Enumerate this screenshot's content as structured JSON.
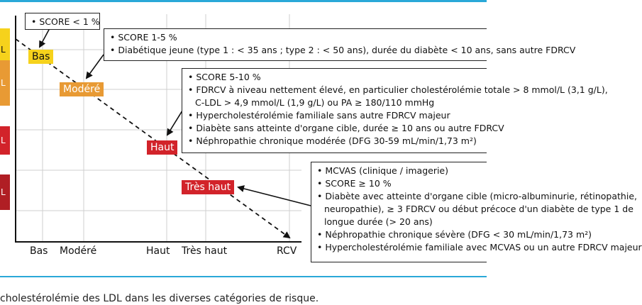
{
  "colors": {
    "accent_line": "#2aa8d8",
    "cat_bas": "#f6d21c",
    "cat_modere": "#e89a34",
    "cat_haut": "#d2232a",
    "cat_tres_haut": "#b01e24",
    "ylabel_bas": "#f6d21c",
    "ylabel_modere": "#e89a34",
    "ylabel_haut": "#d2232a",
    "ylabel_tres_haut": "#b01e24"
  },
  "y_axis_labels": [
    "L",
    "L",
    "L",
    "L"
  ],
  "categories": {
    "bas": "Bas",
    "modere": "Modéré",
    "haut": "Haut",
    "tres_haut": "Très haut"
  },
  "x_axis_ticks": [
    "Bas",
    "Modéré",
    "Haut",
    "Très haut",
    "RCV"
  ],
  "box_bas": {
    "items": [
      "SCORE < 1 %"
    ]
  },
  "box_modere": {
    "items": [
      "SCORE 1-5 %",
      "Diabétique jeune (type 1 : < 35 ans ; type 2 : < 50 ans), durée du diabète < 10 ans, sans autre FDRCV"
    ]
  },
  "box_haut": {
    "items": [
      "SCORE 5-10 %",
      "FDRCV à niveau nettement élevé, en particulier cholestérolémie totale > 8 mmol/L (3,1 g/L),",
      "C-LDL > 4,9 mmol/L (1,9 g/L) ou PA ≥ 180/110 mmHg",
      "Hypercholestérolémie familiale sans autre FDRCV majeur",
      "Diabète sans atteinte d'organe cible, durée ≥ 10 ans ou autre FDRCV",
      "Néphropathie chronique modérée (DFG 30-59 mL/min/1,73 m²)"
    ]
  },
  "box_tres_haut": {
    "items": [
      "MCVAS (clinique / imagerie)",
      "SCORE ≥ 10 %",
      "Diabète avec atteinte d'organe cible (micro-albuminurie, rétinopathie,",
      "neuropathie), ≥ 3 FDRCV ou début précoce d'un diabète de type 1 de",
      "longue durée (> 20 ans)",
      "Néphropathie chronique sévère (DFG < 30 mL/min/1,73 m²)",
      "Hypercholestérolémie familiale avec MCVAS ou un autre FDRCV majeur"
    ]
  },
  "caption": "cholestérolémie des LDL dans les diverses catégories de risque."
}
